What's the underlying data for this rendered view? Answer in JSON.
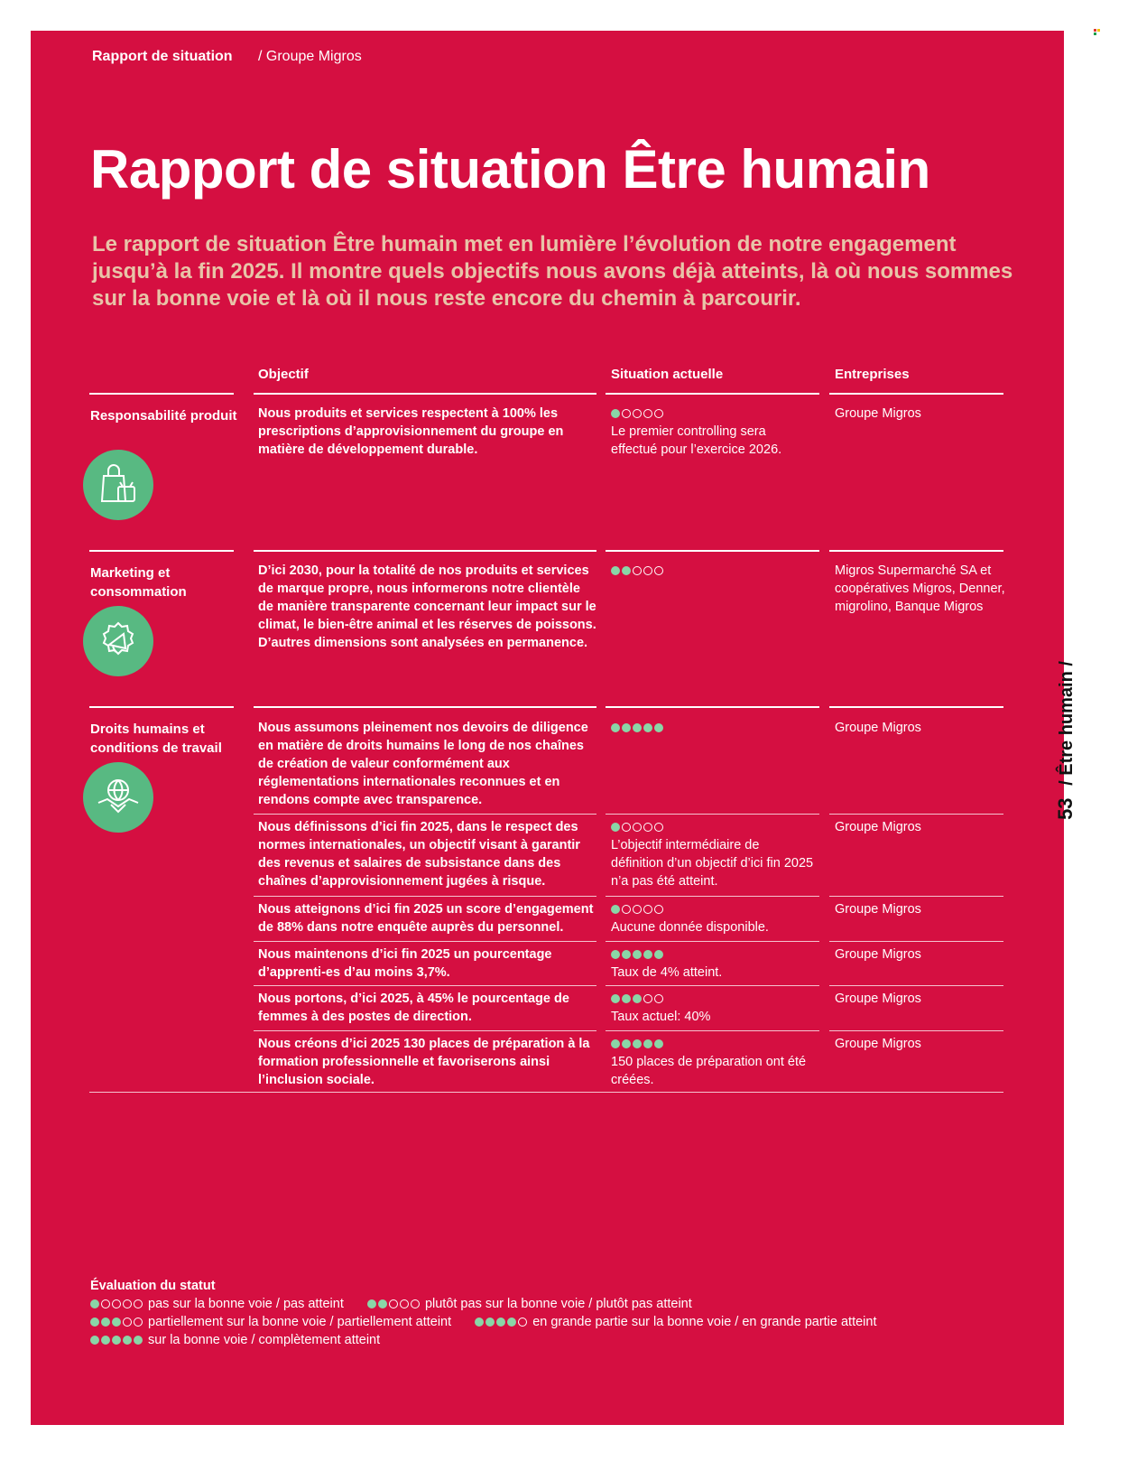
{
  "header": {
    "breadcrumb_main": "Rapport de situation",
    "breadcrumb_sub": "/ Groupe Migros"
  },
  "title": "Rapport de situation Être humain",
  "intro": "Le rapport de situation Être humain met en lumière l’évolution de notre engagement jusqu’à la fin 2025. Il montre quels objectifs nous avons déjà atteints, là où nous sommes sur la bonne voie et là où il nous reste encore du chemin à parcourir.",
  "side_label": {
    "page_number": "53",
    "chapter": "/ Être humain /"
  },
  "table": {
    "headers": {
      "objective": "Objectif",
      "situation": "Situation actuelle",
      "companies": "Entreprises"
    },
    "categories": [
      {
        "label": "Responsabilité produit",
        "icon": "shopping-bag-tv-icon",
        "rows": [
          {
            "objective": "Nous produits et services respectent à 100% les prescriptions d’approvisionnement du groupe en matière de développement durable.",
            "rating": 1,
            "situation": "Le premier controlling sera effectué pour l’exercice 2026.",
            "companies": "Groupe Migros"
          }
        ]
      },
      {
        "label": "Marketing et consommation",
        "icon": "megaphone-icon",
        "rows": [
          {
            "objective": "D’ici 2030, pour la totalité de nos produits et services de marque propre, nous informerons notre clientèle de manière transparente concernant leur impact sur le climat, le bien-être animal et les réserves de poissons. D’autres dimensions sont analysées en permanence.",
            "rating": 2,
            "situation": "",
            "companies": "Migros Supermarché SA et coopératives Migros, Denner, migrolino, Banque Migros"
          }
        ]
      },
      {
        "label": "Droits humains et conditions de travail",
        "icon": "handshake-globe-icon",
        "rows": [
          {
            "objective": "Nous assumons pleinement nos devoirs de diligence en matière de droits humains le long de nos chaînes de création de valeur conformément aux réglementations internationales reconnues et en rendons compte avec transparence.",
            "rating": 5,
            "situation": "",
            "companies": "Groupe Migros"
          },
          {
            "objective": "Nous définissons d’ici fin 2025, dans le respect des normes internationales, un objectif visant à garantir des revenus et salaires de subsistance dans des chaînes d’approvisionnement jugées à risque.",
            "rating": 1,
            "situation": "L’objectif intermédiaire de définition d’un objectif d’ici fin 2025 n’a pas été atteint.",
            "companies": "Groupe Migros"
          },
          {
            "objective": "Nous atteignons d’ici fin 2025 un score d’engagement de 88% dans notre enquête auprès du personnel.",
            "rating": 1,
            "situation": "Aucune donnée disponible.",
            "companies": "Groupe Migros"
          },
          {
            "objective": "Nous maintenons d’ici fin 2025 un pourcentage d’apprenti-es d’au moins 3,7%.",
            "rating": 5,
            "situation": "Taux de 4% atteint.",
            "companies": "Groupe Migros"
          },
          {
            "objective": "Nous portons, d’ici 2025, à 45% le pourcentage de femmes à des postes de direction.",
            "rating": 3,
            "situation": "Taux actuel: 40%",
            "companies": "Groupe Migros"
          },
          {
            "objective": "Nous créons d’ici 2025 130 places de préparation à la formation professionnelle et favoriserons ainsi l’inclusion sociale.",
            "rating": 5,
            "situation": "150 places de préparation ont été créées.",
            "companies": "Groupe Migros"
          }
        ]
      }
    ]
  },
  "legend": {
    "title": "Évaluation du statut",
    "items": [
      {
        "rating": 1,
        "label": "pas sur la bonne voie / pas atteint"
      },
      {
        "rating": 2,
        "label": "plutôt pas sur la bonne voie / plutôt pas atteint"
      },
      {
        "rating": 3,
        "label": "partiellement sur la bonne voie / partiellement atteint"
      },
      {
        "rating": 4,
        "label": "en grande partie sur la bonne voie / en grande partie atteint"
      },
      {
        "rating": 5,
        "label": "sur la bonne voie / complètement atteint"
      }
    ]
  },
  "colors": {
    "page_background": "#d50f41",
    "icon_circle": "#58b982",
    "rating_dot_filled": "#8ad6a7",
    "intro_text": "#e8c4a8"
  }
}
